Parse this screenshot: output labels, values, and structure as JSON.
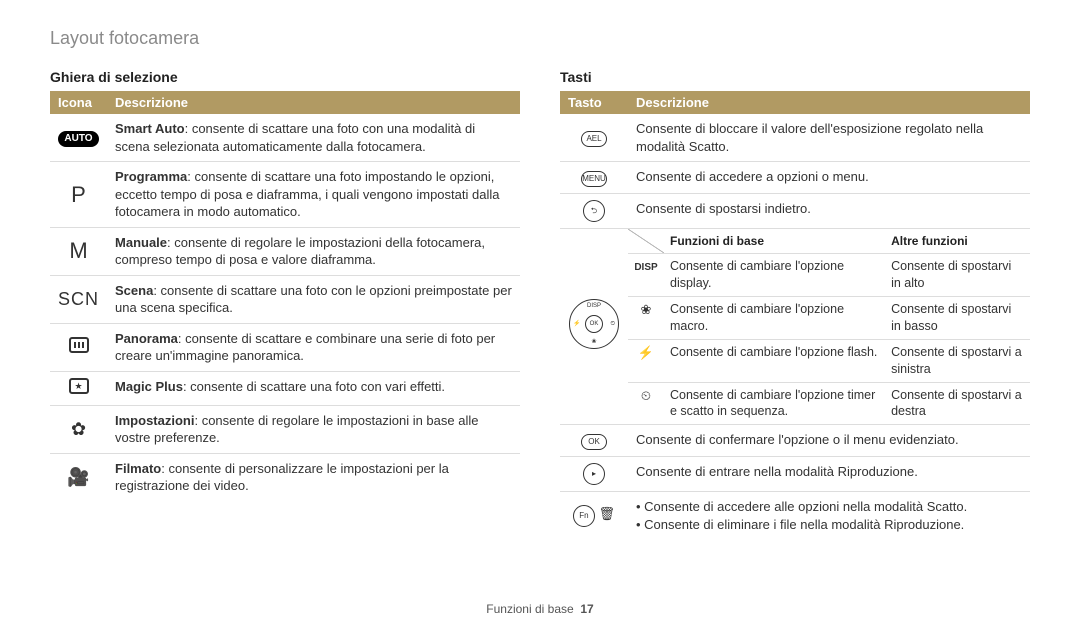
{
  "page": {
    "title": "Layout fotocamera",
    "footer_section": "Funzioni di base",
    "footer_page": "17"
  },
  "colors": {
    "header_left": "#b19a63",
    "header_right": "#b19a63",
    "row_border": "#dddddd"
  },
  "left": {
    "heading": "Ghiera di selezione",
    "col1": "Icona",
    "col2": "Descrizione",
    "rows": [
      {
        "icon_kind": "auto",
        "icon_label": "AUTO",
        "bold": "Smart Auto",
        "text": ": consente di scattare una foto con una modalità di scena selezionata automaticamente dalla fotocamera."
      },
      {
        "icon_kind": "letter",
        "icon_label": "P",
        "bold": "Programma",
        "text": ": consente di scattare una foto impostando le opzioni, eccetto tempo di posa e diaframma, i quali vengono impostati dalla fotocamera in modo automatico."
      },
      {
        "icon_kind": "letter",
        "icon_label": "M",
        "bold": "Manuale",
        "text": ": consente di regolare le impostazioni della fotocamera, compreso tempo di posa e valore diaframma."
      },
      {
        "icon_kind": "scn",
        "icon_label": "SCN",
        "bold": "Scena",
        "text": ": consente di scattare una foto con le opzioni preimpostate per una scena specifica."
      },
      {
        "icon_kind": "pano",
        "icon_label": "",
        "bold": "Panorama",
        "text": ": consente di scattare e combinare una serie di foto per creare un'immagine panoramica."
      },
      {
        "icon_kind": "magic",
        "icon_label": "",
        "bold": "Magic Plus",
        "text": ": consente di scattare una foto con vari effetti."
      },
      {
        "icon_kind": "gear",
        "icon_label": "✿",
        "bold": "Impostazioni",
        "text": ": consente di regolare le impostazioni in base alle vostre preferenze."
      },
      {
        "icon_kind": "film",
        "icon_label": "🎥",
        "bold": "Filmato",
        "text": ": consente di personalizzare le impostazioni per la registrazione dei video."
      }
    ]
  },
  "right": {
    "heading": "Tasti",
    "col1": "Tasto",
    "col2": "Descrizione",
    "rows_top": [
      {
        "icon_kind": "oval",
        "icon_label": "AEL",
        "text": "Consente di bloccare il valore dell'esposizione regolato nella modalità Scatto."
      },
      {
        "icon_kind": "oval",
        "icon_label": "MENU",
        "text": "Consente di accedere a opzioni o menu."
      },
      {
        "icon_kind": "circle",
        "icon_label": "⮌",
        "text": "Consente di spostarsi indietro."
      }
    ],
    "subtable": {
      "h_empty": "",
      "h_col2": "Funzioni di base",
      "h_col3": "Altre funzioni",
      "rows": [
        {
          "icon_kind": "disp",
          "icon_label": "DISP",
          "c2": "Consente di cambiare l'opzione display.",
          "c3": "Consente di spostarvi in alto"
        },
        {
          "icon_kind": "glyph",
          "icon_label": "❀",
          "c2": "Consente di cambiare l'opzione macro.",
          "c3": "Consente di spostarvi in basso"
        },
        {
          "icon_kind": "glyph",
          "icon_label": "⚡",
          "c2": "Consente di cambiare l'opzione flash.",
          "c3": "Consente di spostarvi a sinistra"
        },
        {
          "icon_kind": "glyph",
          "icon_label": "⏲",
          "c2": "Consente di cambiare l'opzione timer e scatto in sequenza.",
          "c3": "Consente di spostarvi a destra"
        }
      ]
    },
    "rows_bottom": [
      {
        "icon_kind": "oval",
        "icon_label": "OK",
        "text": "Consente di confermare l'opzione o il menu evidenziato."
      },
      {
        "icon_kind": "circle",
        "icon_label": "▸",
        "text": "Consente di entrare nella modalità Riproduzione."
      }
    ],
    "fn_row": {
      "icon_label": "Fn",
      "trash_glyph": "🗑",
      "bullets": [
        "Consente di accedere alle opzioni nella modalità Scatto.",
        "Consente di eliminare i file nella modalità Riproduzione."
      ]
    }
  }
}
